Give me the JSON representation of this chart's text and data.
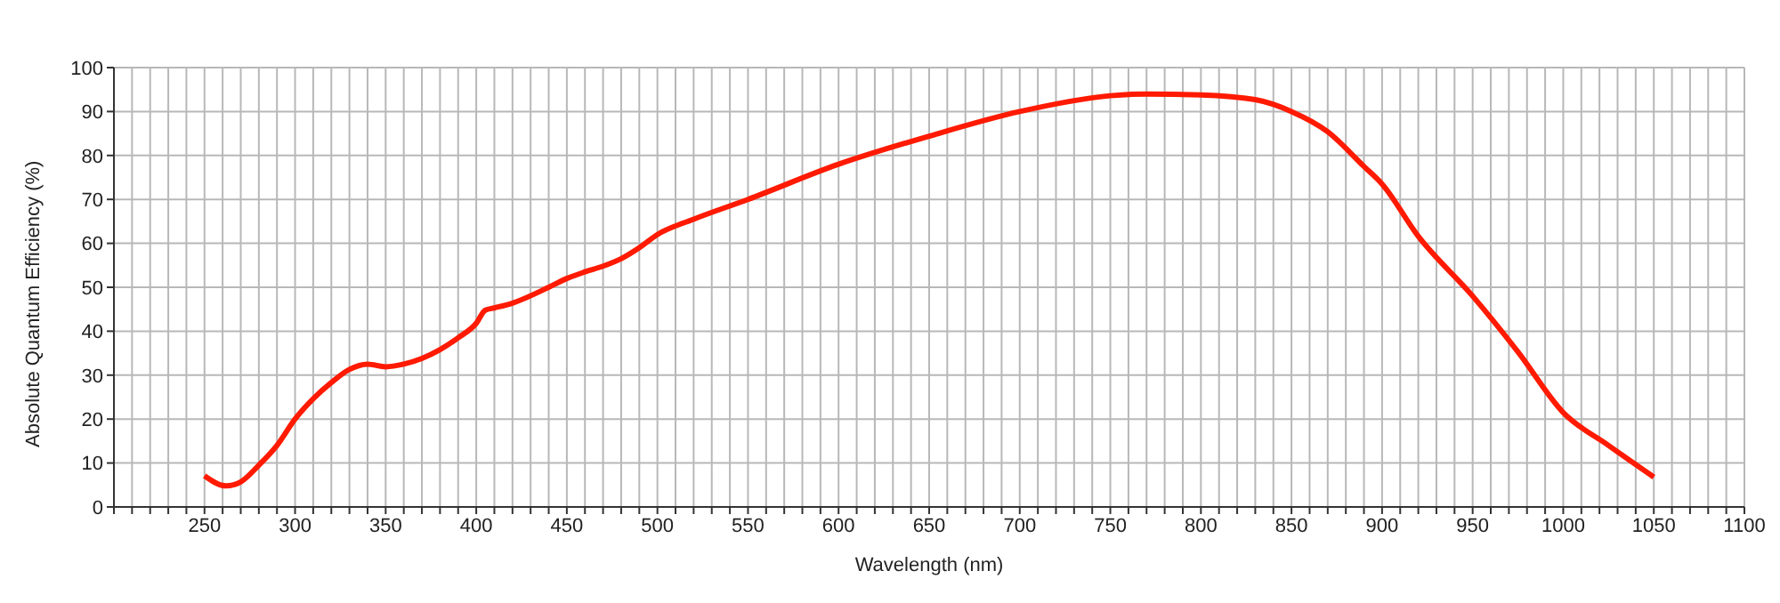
{
  "chart_data": {
    "type": "line",
    "xlabel": "Wavelength (nm)",
    "ylabel": "Absolute Quantum Efficiency (%)",
    "x": [
      250,
      262,
      270,
      280,
      290,
      300,
      310,
      320,
      330,
      340,
      350,
      360,
      370,
      380,
      390,
      400,
      405,
      410,
      420,
      440,
      450,
      460,
      470,
      480,
      490,
      500,
      520,
      550,
      600,
      650,
      700,
      750,
      770,
      800,
      830,
      850,
      870,
      890,
      900,
      920,
      950,
      975,
      1000,
      1025,
      1050
    ],
    "series": [
      {
        "color": "#ff1a00",
        "values": [
          7.1,
          4.8,
          5.7,
          9.5,
          14,
          20,
          24.6,
          28.3,
          31.3,
          32.5,
          31.9,
          32.5,
          33.8,
          35.8,
          38.5,
          41.8,
          44.8,
          45.3,
          46.4,
          50,
          52,
          53.5,
          54.8,
          56.5,
          59,
          62,
          65.5,
          70,
          78,
          84.4,
          90,
          93.6,
          94,
          93.8,
          92.7,
          90,
          85.4,
          77.5,
          73.5,
          61.6,
          48,
          35.3,
          21.5,
          14,
          6.8
        ]
      }
    ],
    "xlim": [
      200,
      1100
    ],
    "xticks": [
      {
        "value": 200,
        "label": null
      },
      {
        "value": 210,
        "label": null
      },
      {
        "value": 220,
        "label": null
      },
      {
        "value": 230,
        "label": null
      },
      {
        "value": 240,
        "label": null
      },
      250,
      {
        "value": 260,
        "label": null
      },
      {
        "value": 270,
        "label": null
      },
      {
        "value": 280,
        "label": null
      },
      {
        "value": 290,
        "label": null
      },
      300,
      {
        "value": 310,
        "label": null
      },
      {
        "value": 320,
        "label": null
      },
      {
        "value": 330,
        "label": null
      },
      {
        "value": 340,
        "label": null
      },
      350,
      {
        "value": 360,
        "label": null
      },
      {
        "value": 370,
        "label": null
      },
      {
        "value": 380,
        "label": null
      },
      {
        "value": 390,
        "label": null
      },
      400,
      {
        "value": 410,
        "label": null
      },
      {
        "value": 420,
        "label": null
      },
      {
        "value": 430,
        "label": null
      },
      {
        "value": 440,
        "label": null
      },
      450,
      {
        "value": 460,
        "label": null
      },
      {
        "value": 470,
        "label": null
      },
      {
        "value": 480,
        "label": null
      },
      {
        "value": 490,
        "label": null
      },
      500,
      {
        "value": 510,
        "label": null
      },
      {
        "value": 520,
        "label": null
      },
      {
        "value": 530,
        "label": null
      },
      {
        "value": 540,
        "label": null
      },
      550,
      {
        "value": 560,
        "label": null
      },
      {
        "value": 570,
        "label": null
      },
      {
        "value": 580,
        "label": null
      },
      {
        "value": 590,
        "label": null
      },
      600,
      {
        "value": 610,
        "label": null
      },
      {
        "value": 620,
        "label": null
      },
      {
        "value": 630,
        "label": null
      },
      {
        "value": 640,
        "label": null
      },
      650,
      {
        "value": 660,
        "label": null
      },
      {
        "value": 670,
        "label": null
      },
      {
        "value": 680,
        "label": null
      },
      {
        "value": 690,
        "label": null
      },
      700,
      {
        "value": 710,
        "label": null
      },
      {
        "value": 720,
        "label": null
      },
      {
        "value": 730,
        "label": null
      },
      {
        "value": 740,
        "label": null
      },
      750,
      {
        "value": 760,
        "label": null
      },
      {
        "value": 770,
        "label": null
      },
      {
        "value": 780,
        "label": null
      },
      {
        "value": 790,
        "label": null
      },
      800,
      {
        "value": 810,
        "label": null
      },
      {
        "value": 820,
        "label": null
      },
      {
        "value": 830,
        "label": null
      },
      {
        "value": 840,
        "label": null
      },
      850,
      {
        "value": 860,
        "label": null
      },
      {
        "value": 870,
        "label": null
      },
      {
        "value": 880,
        "label": null
      },
      {
        "value": 890,
        "label": null
      },
      900,
      {
        "value": 910,
        "label": null
      },
      {
        "value": 920,
        "label": null
      },
      {
        "value": 930,
        "label": null
      },
      {
        "value": 940,
        "label": null
      },
      950,
      {
        "value": 960,
        "label": null
      },
      {
        "value": 970,
        "label": null
      },
      {
        "value": 980,
        "label": null
      },
      {
        "value": 990,
        "label": null
      },
      1000,
      {
        "value": 1010,
        "label": null
      },
      {
        "value": 1020,
        "label": null
      },
      {
        "value": 1030,
        "label": null
      },
      {
        "value": 1040,
        "label": null
      },
      1050,
      {
        "value": 1060,
        "label": null
      },
      {
        "value": 1070,
        "label": null
      },
      {
        "value": 1080,
        "label": null
      },
      {
        "value": 1090,
        "label": null
      },
      1100
    ],
    "ylim": [
      0,
      100
    ],
    "yticks": [
      0,
      10,
      20,
      30,
      40,
      50,
      60,
      70,
      80,
      90,
      100
    ],
    "grid": true,
    "marker": "none",
    "line_style": "solid"
  }
}
